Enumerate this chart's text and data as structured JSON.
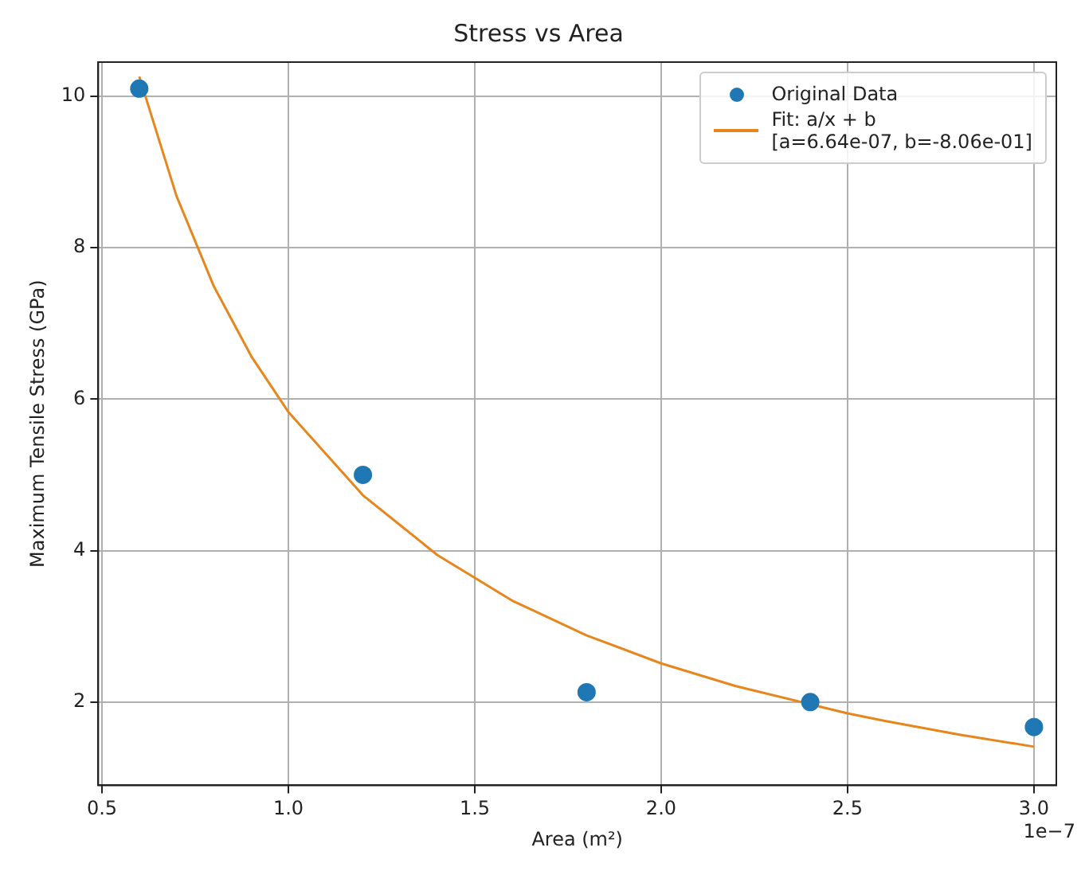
{
  "chart_data": {
    "type": "scatter",
    "title": "Stress vs Area",
    "xlabel": "Area (m²)",
    "ylabel": "Maximum Tensile Stress (GPa)",
    "annotations": [
      "1e−7"
    ],
    "xlim": [
      0.49,
      3.06
    ],
    "ylim": [
      0.9,
      10.45
    ],
    "xticks": [
      0.5,
      {
        "value": 1,
        "label": "1.0"
      },
      1.5,
      {
        "value": 2,
        "label": "2.0"
      },
      2.5,
      {
        "value": 3,
        "label": "3.0"
      }
    ],
    "yticks": [
      2,
      4,
      6,
      8,
      10
    ],
    "grid": true,
    "legend": "top right",
    "series": [
      {
        "name": "Original Data",
        "type": "scatter",
        "color": "#1f77b4",
        "marker": "circle",
        "x": [
          0.6,
          1.2,
          1.8,
          2.4,
          3.0
        ],
        "values": [
          10.1,
          5.0,
          2.13,
          2.0,
          1.67
        ]
      },
      {
        "name": "Fit: a/x + b\n[a=6.64e-07, b=-8.06e-01]",
        "type": "line",
        "color": "#e8861e",
        "marker": "none",
        "line_style": "solid",
        "x": [
          0.6,
          0.7,
          0.8,
          0.9,
          1.0,
          1.2,
          1.4,
          1.6,
          1.8,
          2.0,
          2.2,
          2.5,
          2.6,
          2.8,
          3.0
        ],
        "values": [
          10.26,
          8.68,
          7.49,
          6.57,
          5.83,
          4.73,
          3.94,
          3.34,
          2.88,
          2.51,
          2.21,
          1.85,
          1.75,
          1.57,
          1.41
        ]
      }
    ]
  }
}
